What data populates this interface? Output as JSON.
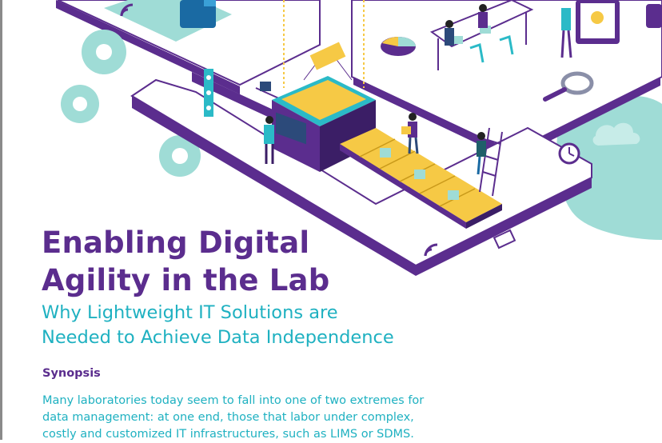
{
  "document": {
    "title_lines": [
      "Enabling Digital",
      "Agility in the Lab"
    ],
    "subtitle_lines": [
      "Why Lightweight IT Solutions are",
      "Needed to Achieve Data Independence"
    ],
    "synopsis": {
      "heading": "Synopsis",
      "lines": [
        "Many laboratories today seem to fall into one of two extremes for",
        "data management: at one end, those that labor under complex,",
        "costly and customized IT infrastructures, such as LIMS or SDMS."
      ]
    }
  },
  "colors": {
    "brand_purple": "#5b2d8e",
    "accent_teal": "#1fb1c1",
    "platform_mint": "#9fdcd6",
    "conveyor_yellow": "#f6c945"
  },
  "illustration": {
    "icons": [
      "gear-icon",
      "wifi-icon",
      "magnifier-icon",
      "clock-icon",
      "cloud-icon",
      "pie-chart-icon",
      "ladder-icon",
      "conveyor-belt",
      "laptop-icon"
    ]
  }
}
